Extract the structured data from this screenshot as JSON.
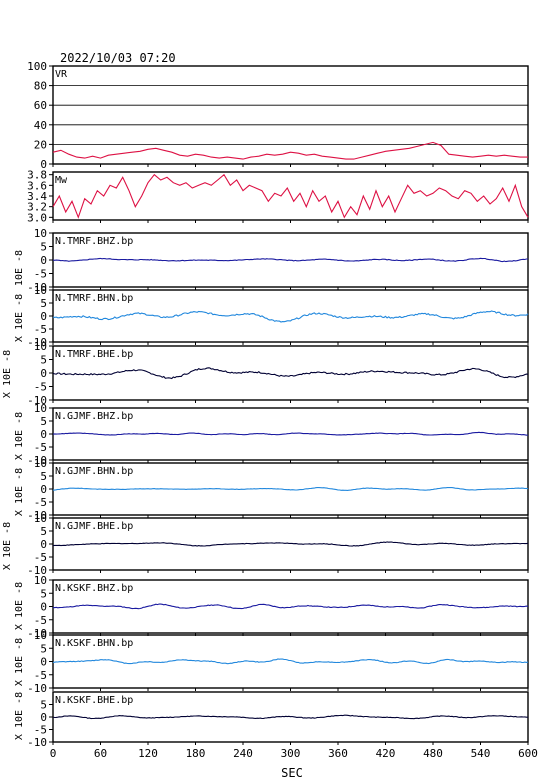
{
  "header": {
    "timestamp": "2022/10/03 07:20"
  },
  "colors": {
    "vr": "#dd1144",
    "mw": "#dd1144",
    "bhz": "#1a1aa0",
    "bhn": "#2288dd",
    "bhe": "#000033",
    "axis": "#000000",
    "grid": "#000000"
  },
  "chart_data": {
    "type": "line",
    "xlabel": "SEC",
    "xlim": [
      0,
      600
    ],
    "xticks": [
      "0",
      "60",
      "120",
      "180",
      "240",
      "300",
      "360",
      "420",
      "480",
      "540",
      "600"
    ],
    "panels": [
      {
        "kind": "vr",
        "label": "VR",
        "ylim": [
          0,
          100
        ],
        "yticks": [
          "100",
          "80",
          "60",
          "40",
          "20",
          "0"
        ],
        "grid": true,
        "x": [
          0,
          10,
          20,
          30,
          40,
          50,
          60,
          70,
          80,
          90,
          100,
          110,
          120,
          130,
          140,
          150,
          160,
          170,
          180,
          190,
          200,
          210,
          220,
          230,
          240,
          250,
          260,
          270,
          280,
          290,
          300,
          310,
          320,
          330,
          340,
          350,
          360,
          370,
          380,
          390,
          400,
          410,
          420,
          430,
          440,
          450,
          460,
          470,
          480,
          490,
          500,
          510,
          520,
          530,
          540,
          550,
          560,
          570,
          580,
          590,
          600
        ],
        "y": [
          12,
          14,
          10,
          7,
          6,
          8,
          6,
          9,
          10,
          11,
          12,
          13,
          15,
          16,
          14,
          12,
          9,
          8,
          10,
          9,
          7,
          6,
          7,
          6,
          5,
          7,
          8,
          10,
          9,
          10,
          12,
          11,
          9,
          10,
          8,
          7,
          6,
          5,
          5,
          7,
          9,
          11,
          13,
          14,
          15,
          16,
          18,
          20,
          22,
          19,
          10,
          9,
          8,
          7,
          8,
          9,
          8,
          9,
          8,
          7,
          7
        ]
      },
      {
        "kind": "mw",
        "label": "Mw",
        "ylim": [
          2.95,
          3.85
        ],
        "yticks": [
          "3.8",
          "3.6",
          "3.4",
          "3.2",
          "3.0"
        ],
        "grid": false,
        "x": [
          0,
          8,
          16,
          24,
          32,
          40,
          48,
          56,
          64,
          72,
          80,
          88,
          96,
          104,
          112,
          120,
          128,
          136,
          144,
          152,
          160,
          168,
          176,
          184,
          192,
          200,
          208,
          216,
          224,
          232,
          240,
          248,
          256,
          264,
          272,
          280,
          288,
          296,
          304,
          312,
          320,
          328,
          336,
          344,
          352,
          360,
          368,
          376,
          384,
          392,
          400,
          408,
          416,
          424,
          432,
          440,
          448,
          456,
          464,
          472,
          480,
          488,
          496,
          504,
          512,
          520,
          528,
          536,
          544,
          552,
          560,
          568,
          576,
          584,
          592,
          600
        ],
        "y": [
          3.2,
          3.4,
          3.1,
          3.3,
          3.0,
          3.35,
          3.25,
          3.5,
          3.4,
          3.6,
          3.55,
          3.75,
          3.5,
          3.2,
          3.4,
          3.65,
          3.8,
          3.7,
          3.75,
          3.65,
          3.6,
          3.65,
          3.55,
          3.6,
          3.65,
          3.6,
          3.7,
          3.8,
          3.6,
          3.7,
          3.5,
          3.6,
          3.55,
          3.5,
          3.3,
          3.45,
          3.4,
          3.55,
          3.3,
          3.45,
          3.2,
          3.5,
          3.3,
          3.4,
          3.1,
          3.3,
          3.0,
          3.2,
          3.05,
          3.4,
          3.15,
          3.5,
          3.2,
          3.4,
          3.1,
          3.35,
          3.6,
          3.45,
          3.5,
          3.4,
          3.45,
          3.55,
          3.5,
          3.4,
          3.35,
          3.5,
          3.45,
          3.3,
          3.4,
          3.25,
          3.35,
          3.55,
          3.3,
          3.6,
          3.2,
          3.0
        ]
      },
      {
        "kind": "wave",
        "label": "N.TMRF.BHZ.bp",
        "channel": "bhz",
        "amp": 0.9,
        "freq": 1.0,
        "ylim": [
          -10,
          10
        ],
        "yticks": [
          "10",
          "5",
          "0",
          "-5",
          "-10"
        ]
      },
      {
        "kind": "wave",
        "label": "N.TMRF.BHN.bp",
        "channel": "bhn",
        "amp": 2.4,
        "freq": 0.8,
        "ylim": [
          -10,
          10
        ],
        "yticks": [
          "10",
          "5",
          "0",
          "-5",
          "-10"
        ]
      },
      {
        "kind": "wave",
        "label": "N.TMRF.BHE.bp",
        "channel": "bhe",
        "amp": 2.2,
        "freq": 0.9,
        "ylim": [
          -10,
          10
        ],
        "yticks": [
          "10",
          "5",
          "0",
          "-5",
          "-10"
        ]
      },
      {
        "kind": "wave",
        "label": "N.GJMF.BHZ.bp",
        "channel": "bhz",
        "amp": 0.6,
        "freq": 1.6,
        "ylim": [
          -10,
          10
        ],
        "yticks": [
          "10",
          "5",
          "0",
          "-5",
          "-10"
        ]
      },
      {
        "kind": "wave",
        "label": "N.GJMF.BHN.bp",
        "channel": "bhn",
        "amp": 0.5,
        "freq": 1.7,
        "ylim": [
          -10,
          10
        ],
        "yticks": [
          "10",
          "5",
          "0",
          "-5",
          "-10"
        ]
      },
      {
        "kind": "wave",
        "label": "N.GJMF.BHE.bp",
        "channel": "bhe",
        "amp": 0.8,
        "freq": 1.5,
        "ylim": [
          -10,
          10
        ],
        "yticks": [
          "10",
          "5",
          "0",
          "-5",
          "-10"
        ]
      },
      {
        "kind": "wave",
        "label": "N.KSKF.BHZ.bp",
        "channel": "bhz",
        "amp": 1.0,
        "freq": 1.4,
        "ylim": [
          -10,
          10
        ],
        "yticks": [
          "10",
          "5",
          "0",
          "-5",
          "-10"
        ]
      },
      {
        "kind": "wave",
        "label": "N.KSKF.BHN.bp",
        "channel": "bhn",
        "amp": 0.9,
        "freq": 1.5,
        "ylim": [
          -10,
          10
        ],
        "yticks": [
          "10",
          "5",
          "0",
          "-5",
          "-10"
        ]
      },
      {
        "kind": "wave",
        "label": "N.KSKF.BHE.bp",
        "channel": "bhe",
        "amp": 0.9,
        "freq": 1.3,
        "ylim": [
          -10,
          10
        ],
        "yticks": [
          "5",
          "0",
          "-5",
          "-10"
        ]
      }
    ],
    "side_labels": [
      "10E -8",
      "X 10E -8",
      "X 10E -8",
      "X 10E -8",
      "X 10E -8",
      "X 10E -8",
      "X 10E -8",
      "X 10E -8",
      "X 10E -8"
    ]
  }
}
